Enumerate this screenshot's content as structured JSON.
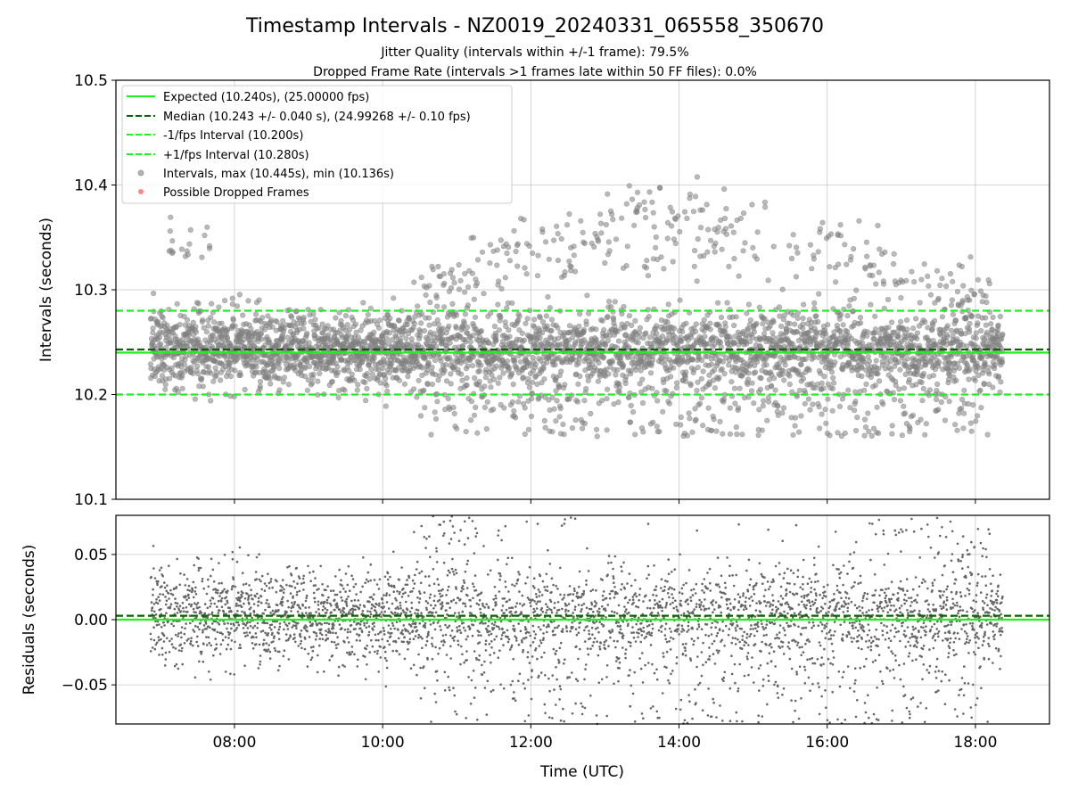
{
  "chart_data": [
    {
      "type": "scatter",
      "title": "Timestamp Intervals - NZ0019_20240331_065558_350670",
      "subtitle_lines": [
        "Jitter Quality (intervals within +/-1 frame): 79.5%",
        "Dropped Frame Rate (intervals >1 frames late within 50 FF files): 0.0%"
      ],
      "xlabel": "",
      "ylabel": "Intervals (seconds)",
      "xlim": [
        "06:24",
        "19:00"
      ],
      "ylim": [
        10.1,
        10.5
      ],
      "x_ticks": [
        "08:00",
        "10:00",
        "12:00",
        "14:00",
        "16:00",
        "18:00"
      ],
      "y_ticks": [
        10.1,
        10.2,
        10.3,
        10.4,
        10.5
      ],
      "y_tick_labels": [
        "10.1",
        "10.2",
        "10.3",
        "10.4",
        "10.5"
      ],
      "grid": true,
      "legend_position": "top-left",
      "x_range_data": [
        "06:52",
        "18:22"
      ],
      "reference_lines": [
        {
          "name": "Expected (10.240s), (25.00000 fps)",
          "y": 10.24,
          "style": "solid",
          "color": "#22ee22"
        },
        {
          "name": "Median (10.243 +/- 0.040 s), (24.99268 +/- 0.10 fps)",
          "y": 10.243,
          "style": "dashed",
          "color": "#006400"
        },
        {
          "name": "-1/fps Interval (10.200s)",
          "y": 10.2,
          "style": "dashed",
          "color": "#22ee22"
        },
        {
          "name": "+1/fps Interval (10.280s)",
          "y": 10.28,
          "style": "dashed",
          "color": "#22ee22"
        }
      ],
      "series": [
        {
          "name": "Intervals, max (10.445s), min (10.136s)",
          "color": "#808080",
          "max": 10.445,
          "min": 10.136,
          "median": 10.243,
          "count": 4000
        },
        {
          "name": "Possible Dropped Frames",
          "color": "#ff6666",
          "count": 0
        }
      ]
    },
    {
      "type": "scatter",
      "title": "",
      "xlabel": "Time (UTC)",
      "ylabel": "Residuals (seconds)",
      "xlim": [
        "06:24",
        "19:00"
      ],
      "ylim": [
        -0.08,
        0.08
      ],
      "x_ticks": [
        "08:00",
        "10:00",
        "12:00",
        "14:00",
        "16:00",
        "18:00"
      ],
      "y_ticks": [
        -0.05,
        0.0,
        0.05
      ],
      "y_tick_labels": [
        "−0.05",
        "0.00",
        "0.05"
      ],
      "grid": true,
      "reference_lines": [
        {
          "y": 0.0,
          "style": "solid",
          "color": "#22ee22"
        },
        {
          "y": 0.003,
          "style": "dashed",
          "color": "#006400"
        }
      ],
      "series": [
        {
          "color": "#666666",
          "count": 4000
        }
      ]
    }
  ]
}
